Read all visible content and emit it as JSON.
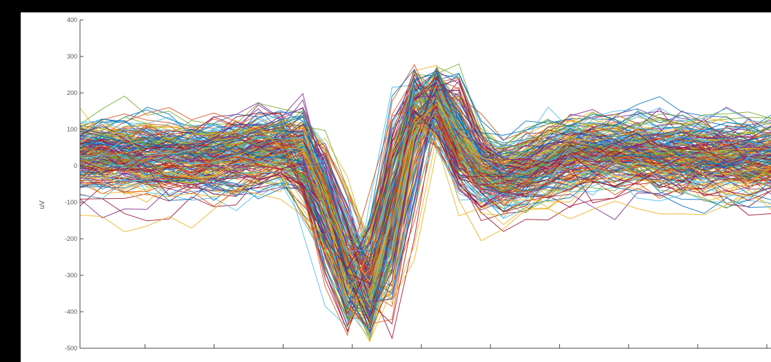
{
  "chart_data": {
    "type": "line",
    "title": "",
    "xlabel": "",
    "ylabel": "uV",
    "ylim": [
      -500,
      400
    ],
    "yticks": [
      400,
      300,
      200,
      100,
      0,
      -100,
      -200,
      -300,
      -400,
      -500
    ],
    "xlim": [
      1,
      32
    ],
    "x_tick_count": 10,
    "grid": false,
    "legend": "none",
    "series_count": 220,
    "palette": [
      "#0072BD",
      "#D95319",
      "#EDB120",
      "#7E2F8E",
      "#77AC30",
      "#4DBEEE",
      "#A2142F"
    ],
    "mean_waveform": {
      "x": [
        1,
        2,
        3,
        4,
        5,
        6,
        7,
        8,
        9,
        10,
        11,
        12,
        13,
        14,
        15,
        16,
        17,
        18,
        19,
        20,
        21,
        22,
        23,
        24,
        25,
        26,
        27,
        28,
        29,
        30,
        31,
        32
      ],
      "y": [
        30,
        32,
        28,
        25,
        22,
        20,
        25,
        35,
        45,
        55,
        60,
        -100,
        -320,
        -420,
        -150,
        180,
        230,
        60,
        -20,
        -40,
        -20,
        10,
        30,
        40,
        42,
        40,
        35,
        30,
        28,
        25,
        22,
        20
      ]
    },
    "variation": {
      "offset_sd": 42,
      "noise_sd": 24,
      "scale_range": [
        0.65,
        1.2
      ],
      "time_jitter_points": 1.0
    },
    "ranges": {
      "min_trough": -490,
      "max_peak": 320
    }
  }
}
